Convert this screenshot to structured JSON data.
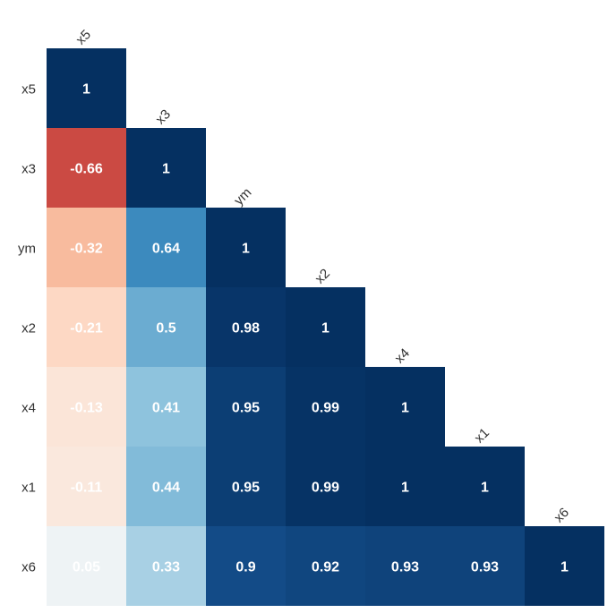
{
  "chart_data": {
    "type": "heatmap",
    "title": "",
    "variables": [
      "x5",
      "x3",
      "ym",
      "x2",
      "x4",
      "x1",
      "x6"
    ],
    "row_labels": [
      "x5",
      "x3",
      "ym",
      "x2",
      "x4",
      "x1",
      "x6"
    ],
    "column_labels": [
      "x5",
      "x3",
      "ym",
      "x2",
      "x4",
      "x1",
      "x6"
    ],
    "matrix": [
      [
        1
      ],
      [
        -0.66,
        1
      ],
      [
        -0.32,
        0.64,
        1
      ],
      [
        -0.21,
        0.5,
        0.98,
        1
      ],
      [
        -0.13,
        0.41,
        0.95,
        0.99,
        1
      ],
      [
        -0.11,
        0.44,
        0.95,
        0.99,
        1,
        1
      ],
      [
        0.05,
        0.33,
        0.9,
        0.92,
        0.93,
        0.93,
        1
      ]
    ],
    "value_labels": [
      [
        "1"
      ],
      [
        "-0.66",
        "1"
      ],
      [
        "-0.32",
        "0.64",
        "1"
      ],
      [
        "-0.21",
        "0.5",
        "0.98",
        "1"
      ],
      [
        "-0.13",
        "0.41",
        "0.95",
        "0.99",
        "1"
      ],
      [
        "-0.11",
        "0.44",
        "0.95",
        "0.99",
        "1",
        "1"
      ],
      [
        "0.05",
        "0.33",
        "0.9",
        "0.92",
        "0.93",
        "0.93",
        "1"
      ]
    ],
    "lower_triangle_only": true,
    "color_scale": "RdBu",
    "value_range": [
      -1,
      1
    ],
    "colors": {
      "negative_strong": "#b2182b",
      "negative_mid": "#ef8a62",
      "negative_light": "#fddbc7",
      "neutral": "#f7f7f7",
      "positive_light": "#d1e5f0",
      "positive_mid": "#67a9cf",
      "positive_strong": "#2166ac",
      "positive_max": "#053061",
      "text": "#ffffff",
      "axis_text": "#333333",
      "background": "#ffffff"
    }
  }
}
